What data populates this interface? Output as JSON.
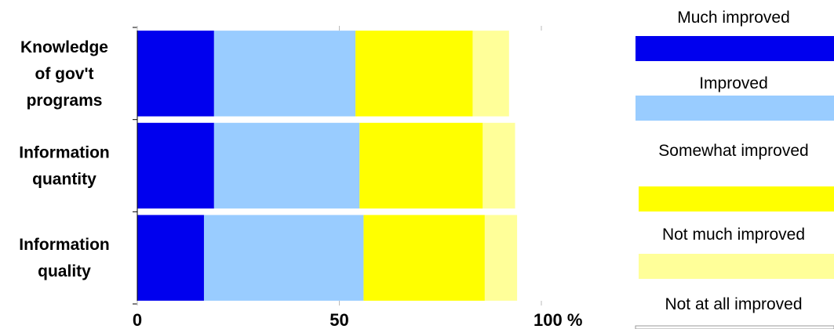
{
  "chart_data": {
    "type": "bar",
    "orientation": "horizontal",
    "stacked": true,
    "categories": [
      [
        "Knowledge",
        "of gov't",
        "programs"
      ],
      [
        "Information",
        "quantity"
      ],
      [
        "Information",
        "quality"
      ]
    ],
    "series": [
      {
        "name": "Much improved",
        "color": "#0000ee",
        "values": [
          19,
          19,
          16.5
        ]
      },
      {
        "name": "Improved",
        "color": "#99ccff",
        "values": [
          35,
          36,
          39.5
        ]
      },
      {
        "name": "Somewhat improved",
        "color": "#ffff00",
        "values": [
          29,
          30.5,
          30
        ]
      },
      {
        "name": "Not much improved",
        "color": "#ffff99",
        "values": [
          9,
          8,
          8
        ]
      },
      {
        "name": "Not at all improved",
        "color": "#ffffff",
        "values": [
          0,
          0,
          0
        ]
      }
    ],
    "xlim": [
      0,
      100
    ],
    "xticks": [
      0,
      50,
      100
    ],
    "xtick_labels": [
      "0",
      "50",
      "100 %"
    ],
    "grid": false,
    "legend_position": "right"
  }
}
